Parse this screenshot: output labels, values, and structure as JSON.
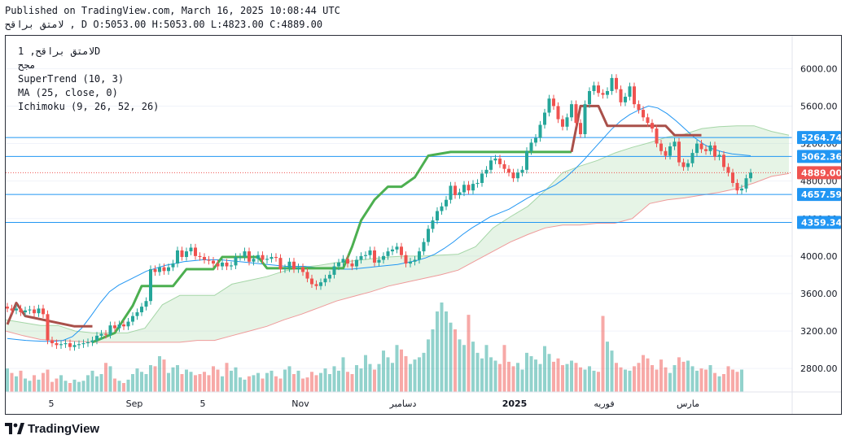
{
  "header": {
    "published": "Published on TradingView.com, March 16, 2025 10:08:44 UTC",
    "ohlc": "لامتق براقح , D O:5053.00 H:5053.00 L:4823.00 C:4889.00"
  },
  "legend": {
    "symbol": "لامتق براقح, 1D",
    "exchange": "مجح",
    "supertrend": "SuperTrend (10, 3)",
    "ma": "MA (25, close, 0)",
    "ichimoku": "Ichimoku (9, 26, 52, 26)"
  },
  "footer": {
    "logo_text": "TradingView"
  },
  "colors": {
    "up": "#26a69a",
    "down": "#ef5350",
    "ma": "#2196f3",
    "supertrend_up": "#4caf50",
    "supertrend_down": "#a9504a",
    "cloud_green": "#a5d6a7",
    "cloud_red": "#ef9a9a",
    "hline": "#2196f3"
  },
  "chart_data": {
    "type": "candlestick",
    "x_labels": [
      "5",
      "Sep",
      "5",
      "Nov",
      "دسامبر",
      "2025",
      "فوریه",
      "مارس"
    ],
    "y_ticks": [
      2800,
      3200,
      3600,
      4000,
      4400,
      4800,
      5200,
      5600,
      6000
    ],
    "y_tick_labels": [
      "2800.00",
      "3200.00",
      "3600.00",
      "4000.00",
      "4400.00",
      "4800.00",
      "5200.00",
      "5600.00",
      "6000.00"
    ],
    "ylim": [
      2550,
      6350
    ],
    "horizontal_lines": [
      5264.74,
      5062.36,
      4657.59,
      4359.34
    ],
    "price_tags": [
      {
        "value": 5264.74,
        "label": "5264.74",
        "color": "#2196f3"
      },
      {
        "value": 5062.36,
        "label": "5062.36",
        "color": "#2196f3"
      },
      {
        "value": 4889.0,
        "label": "4889.00",
        "color": "#ef5350"
      },
      {
        "value": 4657.59,
        "label": "4657.59",
        "color": "#2196f3"
      },
      {
        "value": 4359.34,
        "label": "4359.34",
        "color": "#2196f3"
      }
    ],
    "last_close": 4889.0,
    "candles_close": [
      3440,
      3420,
      3440,
      3400,
      3420,
      3430,
      3390,
      3440,
      3380,
      3100,
      3070,
      3050,
      3060,
      3070,
      3030,
      3050,
      3060,
      3070,
      3080,
      3100,
      3150,
      3170,
      3160,
      3260,
      3230,
      3270,
      3250,
      3300,
      3360,
      3400,
      3460,
      3520,
      3860,
      3830,
      3880,
      3840,
      3880,
      3920,
      4060,
      3990,
      4050,
      4090,
      4000,
      3990,
      3960,
      3950,
      3920,
      3890,
      3930,
      3890,
      3900,
      3990,
      3990,
      4050,
      3940,
      3970,
      4010,
      3960,
      3970,
      3990,
      3980,
      3860,
      3870,
      3940,
      3860,
      3880,
      3830,
      3760,
      3700,
      3680,
      3720,
      3760,
      3800,
      3890,
      3930,
      3970,
      3920,
      3890,
      3960,
      4000,
      4010,
      4060,
      3930,
      3960,
      4000,
      4050,
      4070,
      4100,
      4010,
      3920,
      3940,
      3960,
      4050,
      4150,
      4290,
      4380,
      4480,
      4530,
      4600,
      4750,
      4650,
      4680,
      4760,
      4700,
      4770,
      4780,
      4880,
      4920,
      5020,
      5040,
      4980,
      4930,
      4890,
      4830,
      4890,
      4920,
      5120,
      5210,
      5260,
      5400,
      5530,
      5680,
      5600,
      5460,
      5380,
      5480,
      5620,
      5420,
      5300,
      5620,
      5760,
      5820,
      5740,
      5720,
      5760,
      5900,
      5780,
      5640,
      5700,
      5810,
      5620,
      5560,
      5480,
      5420,
      5360,
      5200,
      5120,
      5070,
      5170,
      5220,
      5000,
      4950,
      4990,
      5100,
      5200,
      5140,
      5120,
      5180,
      5060,
      5080,
      4950,
      4890,
      4780,
      4700,
      4720,
      4830,
      4890
    ],
    "volume": [
      210,
      170,
      140,
      190,
      120,
      100,
      150,
      110,
      170,
      200,
      90,
      120,
      150,
      100,
      80,
      110,
      90,
      100,
      150,
      190,
      140,
      160,
      260,
      230,
      120,
      100,
      80,
      110,
      160,
      210,
      180,
      160,
      240,
      230,
      320,
      290,
      170,
      220,
      240,
      160,
      200,
      180,
      150,
      160,
      180,
      150,
      230,
      200,
      140,
      260,
      190,
      220,
      130,
      110,
      140,
      150,
      170,
      120,
      170,
      190,
      140,
      120,
      200,
      230,
      160,
      190,
      120,
      130,
      180,
      150,
      170,
      210,
      160,
      230,
      190,
      310,
      180,
      160,
      240,
      210,
      330,
      250,
      200,
      250,
      370,
      310,
      260,
      420,
      380,
      320,
      250,
      290,
      310,
      350,
      470,
      560,
      720,
      800,
      720,
      620,
      560,
      470,
      420,
      690,
      450,
      350,
      300,
      420,
      310,
      280,
      250,
      420,
      270,
      230,
      260,
      200,
      350,
      320,
      290,
      250,
      410,
      340,
      270,
      300,
      240,
      250,
      280,
      260,
      220,
      200,
      230,
      190,
      180,
      680,
      450,
      370,
      260,
      220,
      200,
      190,
      230,
      260,
      330,
      300,
      240,
      200,
      290,
      220,
      170,
      240,
      310,
      270,
      280,
      230,
      190,
      210,
      200,
      240,
      170,
      140,
      160,
      230,
      200,
      180,
      200
    ],
    "ma_values": [
      3120,
      3110,
      3100,
      3095,
      3090,
      3090,
      3100,
      3140,
      3230,
      3360,
      3500,
      3620,
      3690,
      3740,
      3790,
      3840,
      3870,
      3900,
      3920,
      3940,
      3950,
      3960,
      3960,
      3960,
      3950,
      3940,
      3930,
      3920,
      3910,
      3900,
      3890,
      3890,
      3890,
      3880,
      3870,
      3860,
      3860,
      3860,
      3870,
      3880,
      3890,
      3900,
      3910,
      3930,
      3950,
      3980,
      4020,
      4080,
      4150,
      4230,
      4300,
      4360,
      4420,
      4460,
      4500,
      4560,
      4620,
      4670,
      4710,
      4760,
      4830,
      4920,
      5020,
      5130,
      5240,
      5350,
      5440,
      5510,
      5560,
      5600,
      5580,
      5520,
      5440,
      5350,
      5260,
      5190,
      5140,
      5110,
      5090,
      5080,
      5070
    ],
    "supertrend": [
      {
        "dir": "down",
        "points": [
          [
            0,
            3270
          ],
          [
            2,
            3500
          ],
          [
            4,
            3360
          ],
          [
            15,
            3250
          ],
          [
            19,
            3250
          ]
        ]
      },
      {
        "dir": "up",
        "points": [
          [
            19,
            3080
          ],
          [
            24,
            3180
          ],
          [
            28,
            3470
          ],
          [
            30,
            3680
          ],
          [
            37,
            3680
          ],
          [
            40,
            3860
          ],
          [
            46,
            3860
          ],
          [
            48,
            3990
          ],
          [
            56,
            3990
          ],
          [
            58,
            3870
          ],
          [
            65,
            3870
          ],
          [
            70,
            3870
          ],
          [
            75,
            3870
          ],
          [
            77,
            4100
          ],
          [
            79,
            4380
          ],
          [
            82,
            4600
          ],
          [
            85,
            4740
          ],
          [
            88,
            4740
          ],
          [
            91,
            4840
          ],
          [
            94,
            5070
          ],
          [
            99,
            5110
          ],
          [
            107,
            5110
          ],
          [
            115,
            5110
          ],
          [
            120,
            5110
          ],
          [
            126,
            5110
          ]
        ]
      },
      {
        "dir": "down",
        "points": [
          [
            126,
            5110
          ],
          [
            128,
            5600
          ],
          [
            132,
            5600
          ],
          [
            134,
            5390
          ],
          [
            143,
            5390
          ],
          [
            147,
            5390
          ],
          [
            149,
            5290
          ],
          [
            155,
            5290
          ]
        ]
      }
    ],
    "cloud": {
      "upper": [
        3320,
        3290,
        3260,
        3260,
        3200,
        3180,
        3180,
        3180,
        3230,
        3480,
        3580,
        3580,
        3580,
        3700,
        3740,
        3780,
        3840,
        3880,
        3900,
        3930,
        3950,
        3970,
        3990,
        4000,
        4000,
        4010,
        4020,
        4100,
        4300,
        4420,
        4530,
        4700,
        4890,
        4960,
        5020,
        5100,
        5160,
        5210,
        5270,
        5300,
        5360,
        5380,
        5390,
        5390,
        5330,
        5290
      ],
      "lower": [
        3200,
        3150,
        3110,
        3100,
        3090,
        3080,
        3080,
        3080,
        3080,
        3080,
        3080,
        3100,
        3100,
        3150,
        3200,
        3250,
        3320,
        3380,
        3450,
        3520,
        3570,
        3620,
        3680,
        3720,
        3760,
        3800,
        3850,
        3950,
        4050,
        4150,
        4230,
        4300,
        4330,
        4330,
        4350,
        4350,
        4400,
        4560,
        4600,
        4620,
        4650,
        4680,
        4720,
        4780,
        4850,
        4880
      ]
    }
  }
}
